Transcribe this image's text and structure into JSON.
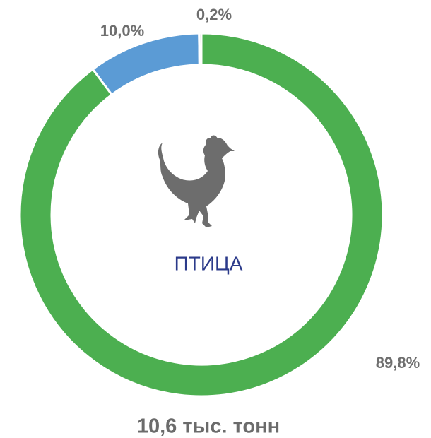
{
  "chart_data": {
    "type": "donut",
    "values": [
      89.8,
      10.0,
      0.2
    ],
    "value_labels": [
      "89,8%",
      "10,0%",
      "0,2%"
    ],
    "colors": [
      "#4caf50",
      "#5b9bd5",
      "#a5a5a5"
    ],
    "center_label": "ПТИЦА",
    "total_label": "10,6 тыс. тонн"
  }
}
